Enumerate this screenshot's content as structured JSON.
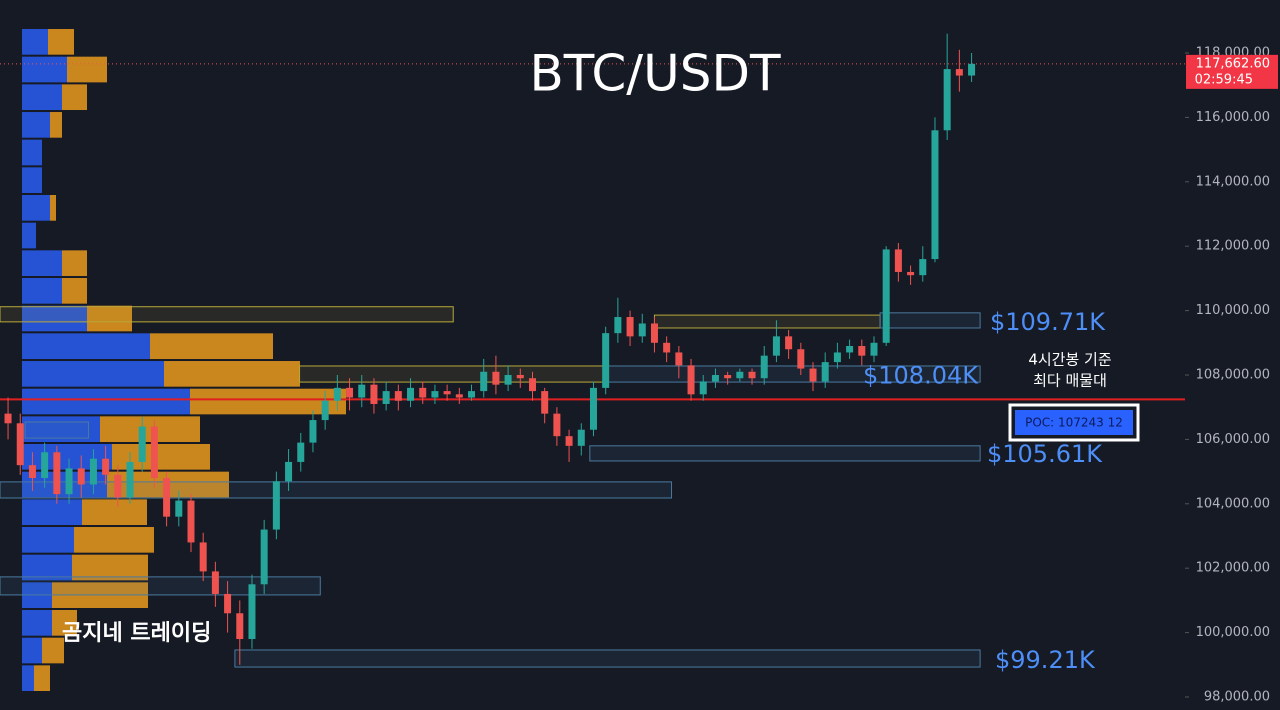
{
  "chart_data": {
    "type": "candlestick",
    "title": "BTC/USDT",
    "watermark": "곰지네 트레이딩",
    "xlim": [
      -0.66,
      96.5
    ],
    "ylim": [
      97596,
      119646
    ],
    "yticks": [
      {
        "value": 98000,
        "label": "98,000.00"
      },
      {
        "value": 100000,
        "label": "100,000.00"
      },
      {
        "value": 102000,
        "label": "102,000.00"
      },
      {
        "value": 104000,
        "label": "104,000.00"
      },
      {
        "value": 106000,
        "label": "106,000.00"
      },
      {
        "value": 108000,
        "label": "108,000.00"
      },
      {
        "value": 110000,
        "label": "110,000.00"
      },
      {
        "value": 112000,
        "label": "112,000.00"
      },
      {
        "value": 114000,
        "label": "114,000.00"
      },
      {
        "value": 116000,
        "label": "116,000.00"
      },
      {
        "value": 118000,
        "label": "118,000.00"
      }
    ],
    "up_color": "#26a69a",
    "down_color": "#ef5350",
    "open": [
      106800,
      106500,
      105200,
      104800,
      105600,
      104300,
      105100,
      104600,
      105400,
      104900,
      104200,
      105300,
      106400,
      104800,
      103600,
      104100,
      102800,
      101900,
      101200,
      100600,
      99800,
      101500,
      103200,
      104700,
      105300,
      105900,
      106600,
      107200,
      107600,
      107300,
      107700,
      107100,
      107500,
      107200,
      107600,
      107300,
      107500,
      107400,
      107300,
      107500,
      108100,
      107700,
      108000,
      107900,
      107500,
      106800,
      106100,
      105800,
      106300,
      107600,
      109300,
      109800,
      109200,
      109600,
      109000,
      108700,
      108300,
      107400,
      107800,
      108000,
      107900,
      108100,
      107900,
      108600,
      109200,
      108800,
      108200,
      107800,
      108400,
      108700,
      108900,
      108600,
      109000,
      111900,
      111200,
      111100,
      111600,
      115600,
      117500,
      117300
    ],
    "high": [
      107300,
      106800,
      105600,
      105900,
      105800,
      105400,
      105500,
      105700,
      105800,
      105200,
      105600,
      106700,
      106600,
      105000,
      104400,
      104300,
      103100,
      102200,
      101600,
      101000,
      101800,
      103500,
      105000,
      105700,
      106200,
      106900,
      107500,
      108000,
      107900,
      108000,
      107900,
      107800,
      107700,
      107900,
      107800,
      107700,
      107700,
      107600,
      107700,
      108500,
      108600,
      108300,
      108200,
      108100,
      107600,
      107000,
      106300,
      106500,
      107800,
      109500,
      110400,
      110000,
      109900,
      109800,
      109200,
      108900,
      108500,
      108000,
      108200,
      108100,
      108200,
      108200,
      108900,
      109700,
      109400,
      109000,
      108400,
      108700,
      109000,
      109100,
      109100,
      109200,
      112000,
      112100,
      111400,
      112000,
      116000,
      118600,
      118100,
      118000
    ],
    "low": [
      106000,
      104900,
      104400,
      104500,
      104000,
      104000,
      104200,
      104300,
      104600,
      103900,
      104000,
      105000,
      104500,
      103300,
      103300,
      102500,
      101600,
      100800,
      100000,
      99000,
      99500,
      101200,
      102900,
      104400,
      105000,
      105600,
      106300,
      106900,
      106900,
      107000,
      106800,
      106900,
      106900,
      107000,
      107100,
      107100,
      107200,
      107100,
      107200,
      107300,
      107400,
      107500,
      107600,
      107200,
      106500,
      105800,
      105300,
      105500,
      106100,
      107400,
      109000,
      108900,
      109000,
      108700,
      108400,
      107900,
      107200,
      107200,
      107600,
      107700,
      107800,
      107700,
      107700,
      108400,
      108500,
      108000,
      107500,
      107600,
      108200,
      108500,
      108300,
      108400,
      108900,
      110900,
      110800,
      110900,
      111500,
      115300,
      116800,
      117100
    ],
    "close": [
      106500,
      105200,
      104800,
      105600,
      104300,
      105100,
      104600,
      105400,
      104900,
      104200,
      105300,
      106400,
      104800,
      103600,
      104100,
      102800,
      101900,
      101200,
      100600,
      99800,
      101500,
      103200,
      104700,
      105300,
      105900,
      106600,
      107200,
      107600,
      107300,
      107700,
      107100,
      107500,
      107200,
      107600,
      107300,
      107500,
      107400,
      107300,
      107500,
      108100,
      107700,
      108000,
      107900,
      107500,
      106800,
      106100,
      105800,
      106300,
      107600,
      109300,
      109800,
      109200,
      109600,
      109000,
      108700,
      108300,
      107400,
      107800,
      108000,
      107900,
      108100,
      107900,
      108600,
      109200,
      108800,
      108200,
      107800,
      108400,
      108700,
      108900,
      108600,
      109000,
      111900,
      111200,
      111100,
      111600,
      115600,
      117500,
      117300,
      117662.6
    ],
    "last_price": {
      "value": 117662.6,
      "label": "117,662.60"
    },
    "countdown": "02:59:45",
    "volume_profile": {
      "bins": [
        98155,
        99014,
        99873,
        100733,
        101592,
        102451,
        103310,
        104169,
        105029,
        105888,
        106747,
        107606,
        108465,
        109325,
        110184,
        111043,
        111902,
        112761,
        113621,
        114480,
        115339,
        116198,
        117057,
        117917,
        118776
      ],
      "buy": [
        12,
        20,
        30,
        30,
        50,
        52,
        60,
        85,
        90,
        78,
        168,
        142,
        128,
        65,
        40,
        40,
        14,
        28,
        20,
        20,
        28,
        40,
        45,
        26
      ],
      "sell": [
        16,
        22,
        25,
        96,
        76,
        80,
        65,
        122,
        98,
        100,
        156,
        136,
        123,
        45,
        25,
        25,
        0,
        6,
        0,
        0,
        12,
        25,
        40,
        26
      ],
      "xlim": [
        0,
        1258
      ],
      "buy_color": "#2962ff",
      "sell_color": "#f7a21b"
    },
    "zones": [
      {
        "x": [
          -0.66,
          36.5
        ],
        "y": [
          109650,
          110120
        ],
        "color": "#b8a83a"
      },
      {
        "x": [
          23.9,
          48.8
        ],
        "y": [
          107780,
          108280
        ],
        "color": "#b8a83a"
      },
      {
        "x": [
          53,
          71.5
        ],
        "y": [
          109460,
          109860
        ],
        "color": "#b8a83a"
      },
      {
        "x": [
          71.5,
          79.7
        ],
        "y": [
          109460,
          109930
        ],
        "color": "#4a7aa0"
      },
      {
        "x": [
          48.8,
          79.7
        ],
        "y": [
          107780,
          108280
        ],
        "color": "#4a7aa0"
      },
      {
        "x": [
          47.7,
          79.7
        ],
        "y": [
          105330,
          105800
        ],
        "color": "#4a7aa0"
      },
      {
        "x": [
          -0.66,
          54.4
        ],
        "y": [
          104180,
          104680
        ],
        "color": "#4a7aa0"
      },
      {
        "x": [
          -0.66,
          25.6
        ],
        "y": [
          101170,
          101730
        ],
        "color": "#4a7aa0"
      },
      {
        "x": [
          18.6,
          79.7
        ],
        "y": [
          98930,
          99460
        ],
        "color": "#4a7aa0"
      },
      {
        "x": [
          1.4,
          6.6
        ],
        "y": [
          106040,
          106540
        ],
        "color": "#4a7aa0"
      }
    ],
    "annotations": [
      {
        "text": "$109.71K",
        "value": 109710
      },
      {
        "text": "$108.04K",
        "value": 108040
      },
      {
        "text": "$105.61K",
        "value": 105610
      },
      {
        "text": "$99.21K",
        "value": 99210
      }
    ],
    "poc": {
      "value": 107243.12,
      "label": "POC: 107243 12",
      "note": [
        "4시간봉 기준",
        "최다 매물대"
      ]
    }
  }
}
